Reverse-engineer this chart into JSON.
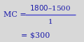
{
  "line1_left": "MC =",
  "numerator": "$1800–$1500",
  "denominator": "1",
  "line2": "= $300",
  "fraction_bar_color": "#4444cc",
  "text_color": "#1a1aaa",
  "bg_color": "#d8d8d8",
  "font_size": 8.0,
  "small_font_size": 7.5
}
